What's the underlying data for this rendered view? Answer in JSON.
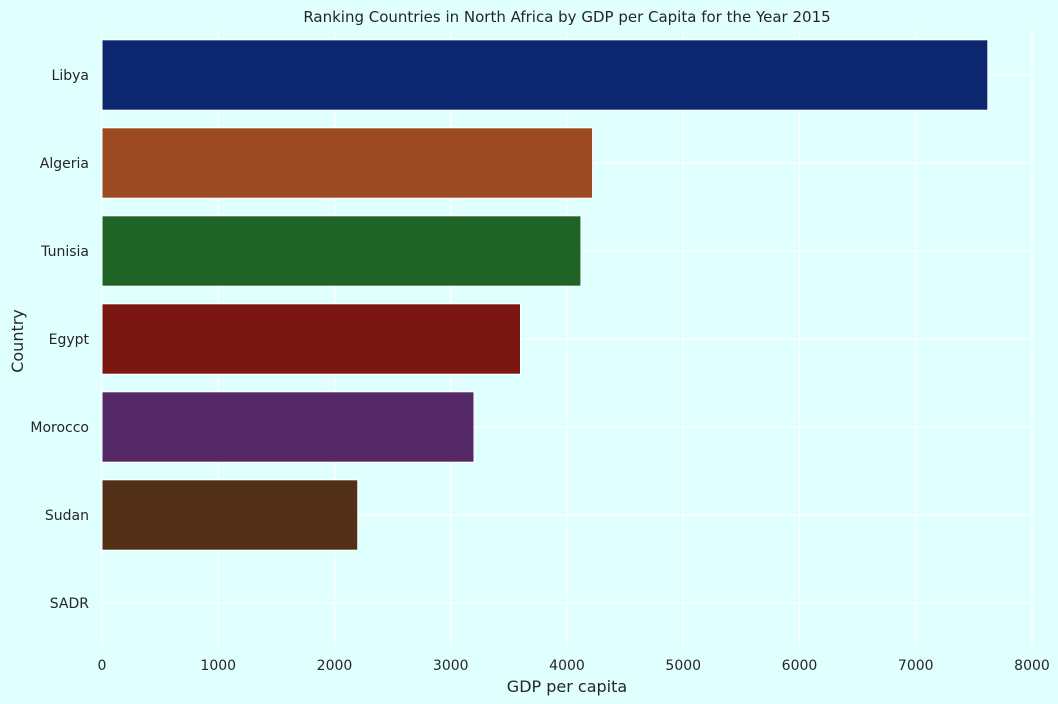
{
  "chart_data": {
    "type": "bar",
    "orientation": "horizontal",
    "title": "Ranking Countries in North Africa by GDP per Capita for the Year 2015",
    "xlabel": "GDP per capita",
    "ylabel": "Country",
    "xlim": [
      0,
      8000
    ],
    "xticks": [
      "0",
      "1000",
      "2000",
      "3000",
      "4000",
      "5000",
      "6000",
      "7000",
      "8000"
    ],
    "grid": true,
    "background": "#e0ffff",
    "categories": [
      "Libya",
      "Algeria",
      "Tunisia",
      "Egypt",
      "Morocco",
      "Sudan",
      "SADR"
    ],
    "values": [
      7620,
      4220,
      4120,
      3600,
      3200,
      2200,
      0
    ],
    "colors": [
      "#0d2670",
      "#9c4a22",
      "#1f6426",
      "#7a1712",
      "#552966",
      "#523017",
      "#555555"
    ]
  }
}
